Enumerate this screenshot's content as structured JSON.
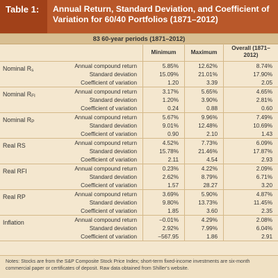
{
  "header": {
    "table_label": "Table 1:",
    "title": "Annual Return, Standard Deviation, and Coefficient of Variation for 60/40 Portfolios (1871–2012)"
  },
  "subheader": "83 60-year periods (1871–2012)",
  "columns": [
    "Minimum",
    "Maximum",
    "Overall (1871–2012)"
  ],
  "groups": [
    {
      "label": "Nominal R",
      "label_sub": "s",
      "rows": [
        {
          "metric": "Annual compound return",
          "min": "5.85%",
          "max": "12.62%",
          "overall": "8.74%"
        },
        {
          "metric": "Standard deviation",
          "min": "15.09%",
          "max": "21.01%",
          "overall": "17.90%"
        },
        {
          "metric": "Coefficient of variation",
          "min": "1.20",
          "max": "3.39",
          "overall": "2.05"
        }
      ]
    },
    {
      "label": "Nominal R",
      "label_sub": "FI",
      "rows": [
        {
          "metric": "Annual compound return",
          "min": "3.17%",
          "max": "5.65%",
          "overall": "4.65%"
        },
        {
          "metric": "Standard deviation",
          "min": "1.20%",
          "max": "3.90%",
          "overall": "2.81%"
        },
        {
          "metric": "Coefficient of variation",
          "min": "0.24",
          "max": "0.88",
          "overall": "0.60"
        }
      ]
    },
    {
      "label": "Nominal R",
      "label_sub": "P",
      "rows": [
        {
          "metric": "Annual compound return",
          "min": "5.67%",
          "max": "9.96%",
          "overall": "7.49%"
        },
        {
          "metric": "Standard deviation",
          "min": "9.01%",
          "max": "12.48%",
          "overall": "10.69%"
        },
        {
          "metric": "Coefficient of variation",
          "min": "0.90",
          "max": "2.10",
          "overall": "1.43"
        }
      ]
    },
    {
      "label": "Real RS",
      "label_sub": "",
      "rows": [
        {
          "metric": "Annual compound return",
          "min": "4.52%",
          "max": "7.73%",
          "overall": "6.09%"
        },
        {
          "metric": "Standard deviation",
          "min": "15.78%",
          "max": "21.46%",
          "overall": "17.87%"
        },
        {
          "metric": "Coefficient of variation",
          "min": "2.11",
          "max": "4.54",
          "overall": "2.93"
        }
      ]
    },
    {
      "label": "Real RFI",
      "label_sub": "",
      "rows": [
        {
          "metric": "Annual compound return",
          "min": "0.23%",
          "max": "4.22%",
          "overall": "2.09%"
        },
        {
          "metric": "Standard deviation",
          "min": "2.62%",
          "max": "8.79%",
          "overall": "6.71%"
        },
        {
          "metric": "Coefficient of variation",
          "min": "1.57",
          "max": "28.27",
          "overall": "3.20"
        }
      ]
    },
    {
      "label": "Real RP",
      "label_sub": "",
      "rows": [
        {
          "metric": "Annual compound return",
          "min": "3.69%",
          "max": "5.90%",
          "overall": "4.87%"
        },
        {
          "metric": "Standard deviation",
          "min": "9.80%",
          "max": "13.73%",
          "overall": "11.45%"
        },
        {
          "metric": "Coefficient of variation",
          "min": "1.85",
          "max": "3.60",
          "overall": "2.35"
        }
      ]
    },
    {
      "label": "Inflation",
      "label_sub": "",
      "rows": [
        {
          "metric": "Annual compound return",
          "min": "−0.01%",
          "max": "4.29%",
          "overall": "2.08%"
        },
        {
          "metric": "Standard deviation",
          "min": "2.92%",
          "max": "7.99%",
          "overall": "6.04%"
        },
        {
          "metric": "Coefficient of variation",
          "min": "−567.95",
          "max": "1.86",
          "overall": "2.91"
        }
      ]
    }
  ],
  "notes": "Notes: Stocks are from the S&P Composite Stock Price Index; short-term fixed-income investments are six-month commercial paper or certificates of deposit. Raw data obtained from Shiller's website."
}
